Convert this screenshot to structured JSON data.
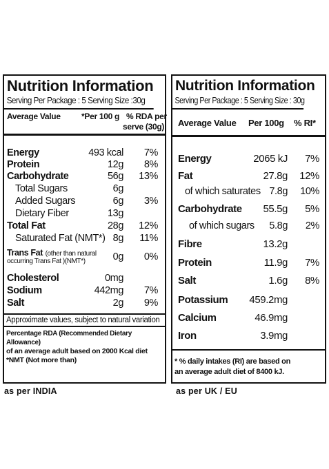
{
  "india": {
    "title": "Nutrition Information",
    "serving": "Serving Per Package : 5   Serving Size :30g",
    "headers": {
      "avg": "Average Value",
      "per100": "*Per 100 g",
      "rda_line1": "% RDA per",
      "rda_line2": "serve (30g)"
    },
    "rows": [
      {
        "label": "Energy",
        "value": "493 kcal",
        "pct": "7%"
      },
      {
        "label": "Protein",
        "value": "12g",
        "pct": "8%"
      },
      {
        "label": "Carbohydrate",
        "value": "56g",
        "pct": "13%"
      },
      {
        "label": "Total Sugars",
        "value": "6g",
        "pct": ""
      },
      {
        "label": "Added Sugars",
        "value": "6g",
        "pct": "3%"
      },
      {
        "label": "Dietary Fiber",
        "value": "13g",
        "pct": ""
      },
      {
        "label": "Total Fat",
        "value": "28g",
        "pct": "12%"
      },
      {
        "label": "Saturated Fat (NMT*)",
        "value": "8g",
        "pct": "11%"
      },
      {
        "label": "Trans Fat",
        "label_note": "(other than natural",
        "label_line2": "occurring Trans Fat )(NMT*)",
        "value": "0g",
        "pct": "0%"
      },
      {
        "label": "Cholesterol",
        "value": "0mg",
        "pct": ""
      },
      {
        "label": "Sodium",
        "value": "442mg",
        "pct": "7%"
      },
      {
        "label": "Salt",
        "value": "2g",
        "pct": "9%"
      }
    ],
    "approx": "Approximate values, subject to natural variation",
    "footnote_line1": "Percentage RDA (Recommended Dietary Allowance)",
    "footnote_line2": "of an average adult based on 2000 Kcal diet",
    "footnote_line3": "*NMT (Not more than)",
    "region": "as per INDIA"
  },
  "uk": {
    "title": "Nutrition Information",
    "serving": "Serving Per Package : 5   Serving Size : 30g",
    "headers": {
      "avg": "Average Value",
      "per100": "Per 100g",
      "ri": "% RI*"
    },
    "rows": [
      {
        "label": "Energy",
        "value": "2065 kJ",
        "pct": "7%"
      },
      {
        "label": "Fat",
        "value": "27.8g",
        "pct": "12%"
      },
      {
        "label": "of which saturates",
        "value": "7.8g",
        "pct": "10%"
      },
      {
        "label": "Carbohydrate",
        "value": "55.5g",
        "pct": "5%"
      },
      {
        "label": "of which sugars",
        "value": "5.8g",
        "pct": "2%"
      },
      {
        "label": "Fibre",
        "value": "13.2g",
        "pct": ""
      },
      {
        "label": "Protein",
        "value": "11.9g",
        "pct": "7%"
      },
      {
        "label": "Salt",
        "value": "1.6g",
        "pct": "8%"
      },
      {
        "label": "Potassium",
        "value": "459.2mg",
        "pct": ""
      },
      {
        "label": "Calcium",
        "value": "46.9mg",
        "pct": ""
      },
      {
        "label": "Iron",
        "value": "3.9mg",
        "pct": ""
      }
    ],
    "footnote_line1": "* % daily intakes (RI) are based on",
    "footnote_line2": "an average adult diet of 8400 kJ.",
    "region": "as per UK / EU"
  }
}
